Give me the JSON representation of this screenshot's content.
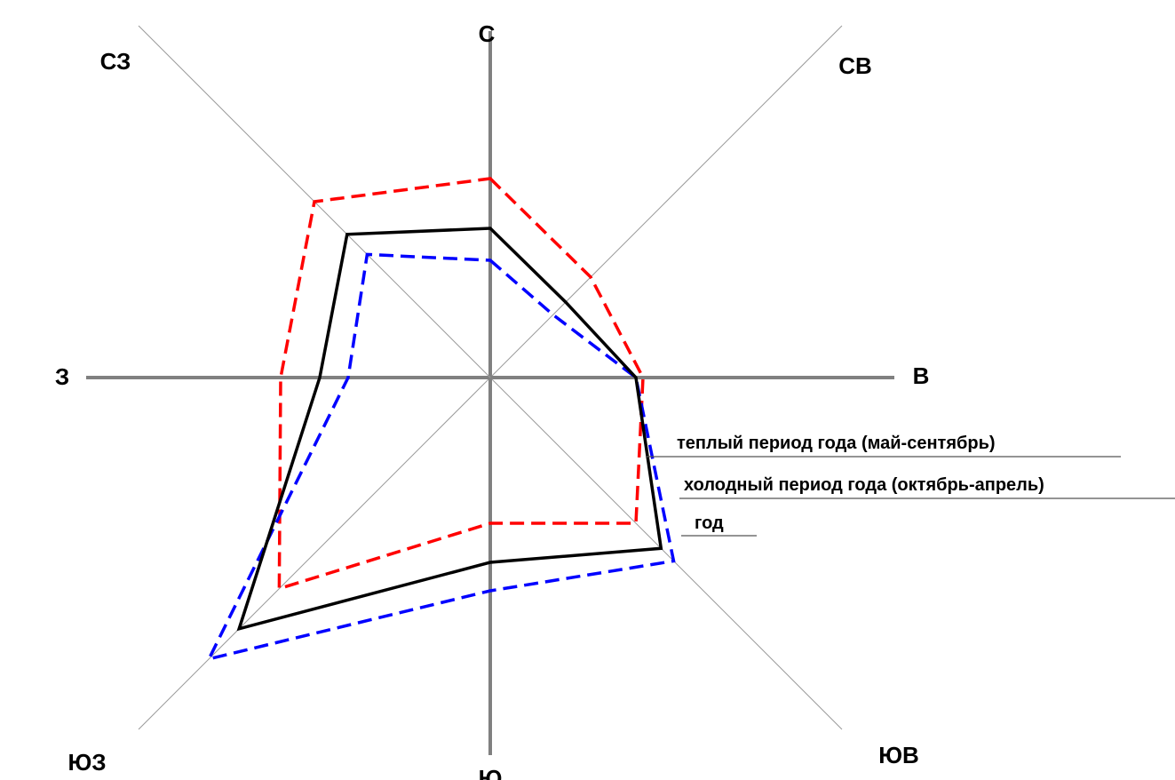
{
  "chart_data": {
    "type": "radar",
    "title": "",
    "directions": [
      "С",
      "СВ",
      "В",
      "ЮВ",
      "Ю",
      "ЮЗ",
      "З",
      "СЗ"
    ],
    "rmax": 100,
    "series": [
      {
        "name": "теплый период года (май-сентябрь)",
        "color": "#ff0000",
        "dash": "dashed",
        "values": [
          56,
          40,
          43,
          58,
          41,
          84,
          59,
          70
        ]
      },
      {
        "name": "холодный период года (октябрь-апрель)",
        "color": "#0000ff",
        "dash": "dashed",
        "values": [
          33,
          25,
          41,
          73,
          60,
          112,
          40,
          49
        ]
      },
      {
        "name": "год",
        "color": "#000000",
        "dash": "solid",
        "values": [
          42,
          30,
          41,
          68,
          52,
          100,
          48,
          57
        ]
      }
    ]
  }
}
